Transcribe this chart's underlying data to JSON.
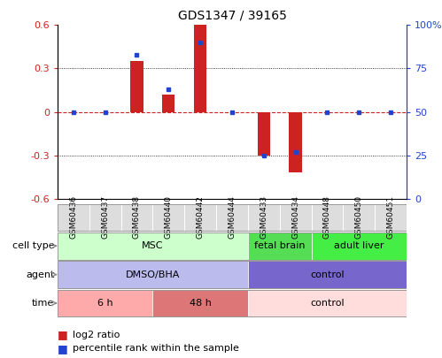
{
  "title": "GDS1347 / 39165",
  "samples": [
    "GSM60436",
    "GSM60437",
    "GSM60438",
    "GSM60440",
    "GSM60442",
    "GSM60444",
    "GSM60433",
    "GSM60434",
    "GSM60448",
    "GSM60450",
    "GSM60451"
  ],
  "log2_ratio": [
    0.0,
    0.0,
    0.35,
    0.12,
    0.6,
    0.0,
    -0.3,
    -0.42,
    0.0,
    0.0,
    0.0
  ],
  "percentile_rank": [
    50,
    50,
    83,
    63,
    90,
    50,
    25,
    27,
    50,
    50,
    50
  ],
  "ylim": [
    -0.6,
    0.6
  ],
  "yticks_left": [
    -0.6,
    -0.3,
    0.0,
    0.3,
    0.6
  ],
  "bar_color": "#cc2222",
  "dot_color": "#2244cc",
  "hline_color": "#cc2222",
  "cell_type_groups": [
    {
      "label": "MSC",
      "start": 0,
      "end": 5,
      "color": "#ccffcc"
    },
    {
      "label": "fetal brain",
      "start": 6,
      "end": 7,
      "color": "#55dd55"
    },
    {
      "label": "adult liver",
      "start": 8,
      "end": 10,
      "color": "#44ee44"
    }
  ],
  "agent_groups": [
    {
      "label": "DMSO/BHA",
      "start": 0,
      "end": 5,
      "color": "#bbbbee"
    },
    {
      "label": "control",
      "start": 6,
      "end": 10,
      "color": "#7766cc"
    }
  ],
  "time_groups": [
    {
      "label": "6 h",
      "start": 0,
      "end": 2,
      "color": "#ffaaaa"
    },
    {
      "label": "48 h",
      "start": 3,
      "end": 5,
      "color": "#dd7777"
    },
    {
      "label": "control",
      "start": 6,
      "end": 10,
      "color": "#ffdddd"
    }
  ],
  "row_labels": [
    "cell type",
    "agent",
    "time"
  ],
  "legend_items": [
    {
      "label": "log2 ratio",
      "color": "#cc2222"
    },
    {
      "label": "percentile rank within the sample",
      "color": "#2244cc"
    }
  ],
  "right_tick_labels": [
    "0",
    "25",
    "50",
    "75",
    "100%"
  ],
  "bar_width": 0.4
}
